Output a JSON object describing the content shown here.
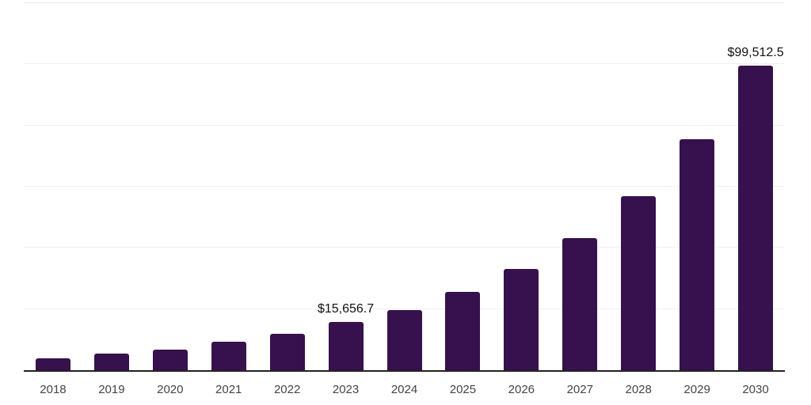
{
  "chart_data": {
    "type": "bar",
    "title": "",
    "xlabel": "",
    "ylabel": "",
    "categories": [
      "2018",
      "2019",
      "2020",
      "2021",
      "2022",
      "2023",
      "2024",
      "2025",
      "2026",
      "2027",
      "2028",
      "2029",
      "2030"
    ],
    "values": [
      3800,
      5500,
      6800,
      9300,
      11800,
      15656.7,
      19700,
      25500,
      33200,
      43300,
      57000,
      75400,
      99512.5
    ],
    "value_labels": [
      null,
      null,
      null,
      null,
      null,
      "$15,656.7",
      null,
      null,
      null,
      null,
      null,
      null,
      "$99,512.5"
    ],
    "ylim": [
      0,
      120000
    ],
    "gridline_values": [
      20000,
      40000,
      60000,
      80000,
      100000,
      120000
    ],
    "grid": true,
    "legend": false,
    "bar_color": "#36114D",
    "gridline_color": "#f0f0f0",
    "axis_line_color": "#222222",
    "tick_label_color": "#444444",
    "value_label_color": "#111111"
  }
}
